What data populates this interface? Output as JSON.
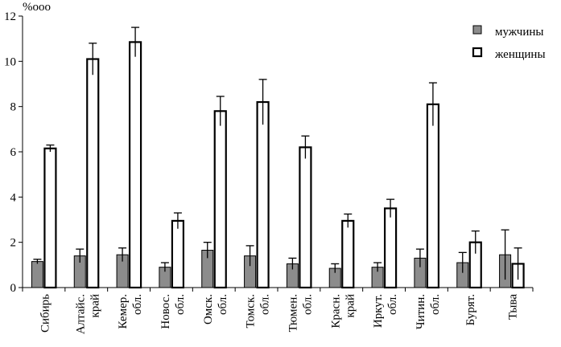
{
  "chart_data": {
    "type": "bar",
    "ylabel": "%ooo",
    "ylim": [
      0,
      12
    ],
    "yticks": [
      0,
      2,
      4,
      6,
      8,
      10,
      12
    ],
    "grid": false,
    "legend_position": "top-right",
    "categories": [
      "Сибирь",
      "Алтайс. край",
      "Кемер. обл.",
      "Новос. обл.",
      "Омск. обл.",
      "Томск. обл.",
      "Тюмен. обл.",
      "Красн. край",
      "Иркут. обл.",
      "Читин. обл.",
      "Бурят.",
      "Тыва"
    ],
    "category_lines": [
      [
        "Сибирь"
      ],
      [
        "Алтайс.",
        "край"
      ],
      [
        "Кемер.",
        "обл."
      ],
      [
        "Новос.",
        "обл."
      ],
      [
        "Омск.",
        "обл."
      ],
      [
        "Томск.",
        "обл."
      ],
      [
        "Тюмен.",
        "обл."
      ],
      [
        "Красн.",
        "край"
      ],
      [
        "Иркут.",
        "обл."
      ],
      [
        "Читин.",
        "обл."
      ],
      [
        "Бурят."
      ],
      [
        "Тыва"
      ]
    ],
    "series": [
      {
        "name": "мужчины",
        "color": "#8c8c8c",
        "values": [
          1.15,
          1.4,
          1.45,
          0.9,
          1.65,
          1.4,
          1.05,
          0.85,
          0.9,
          1.3,
          1.1,
          1.45
        ],
        "error": [
          0.1,
          0.3,
          0.3,
          0.2,
          0.35,
          0.45,
          0.25,
          0.2,
          0.2,
          0.4,
          0.45,
          1.1
        ]
      },
      {
        "name": "женщины",
        "color": "#ffffff",
        "values": [
          6.15,
          10.1,
          10.85,
          2.95,
          7.8,
          8.2,
          6.2,
          2.95,
          3.5,
          8.1,
          2.0,
          1.05
        ],
        "error": [
          0.15,
          0.7,
          0.65,
          0.35,
          0.65,
          1.0,
          0.5,
          0.3,
          0.4,
          0.95,
          0.5,
          0.7
        ]
      }
    ]
  }
}
